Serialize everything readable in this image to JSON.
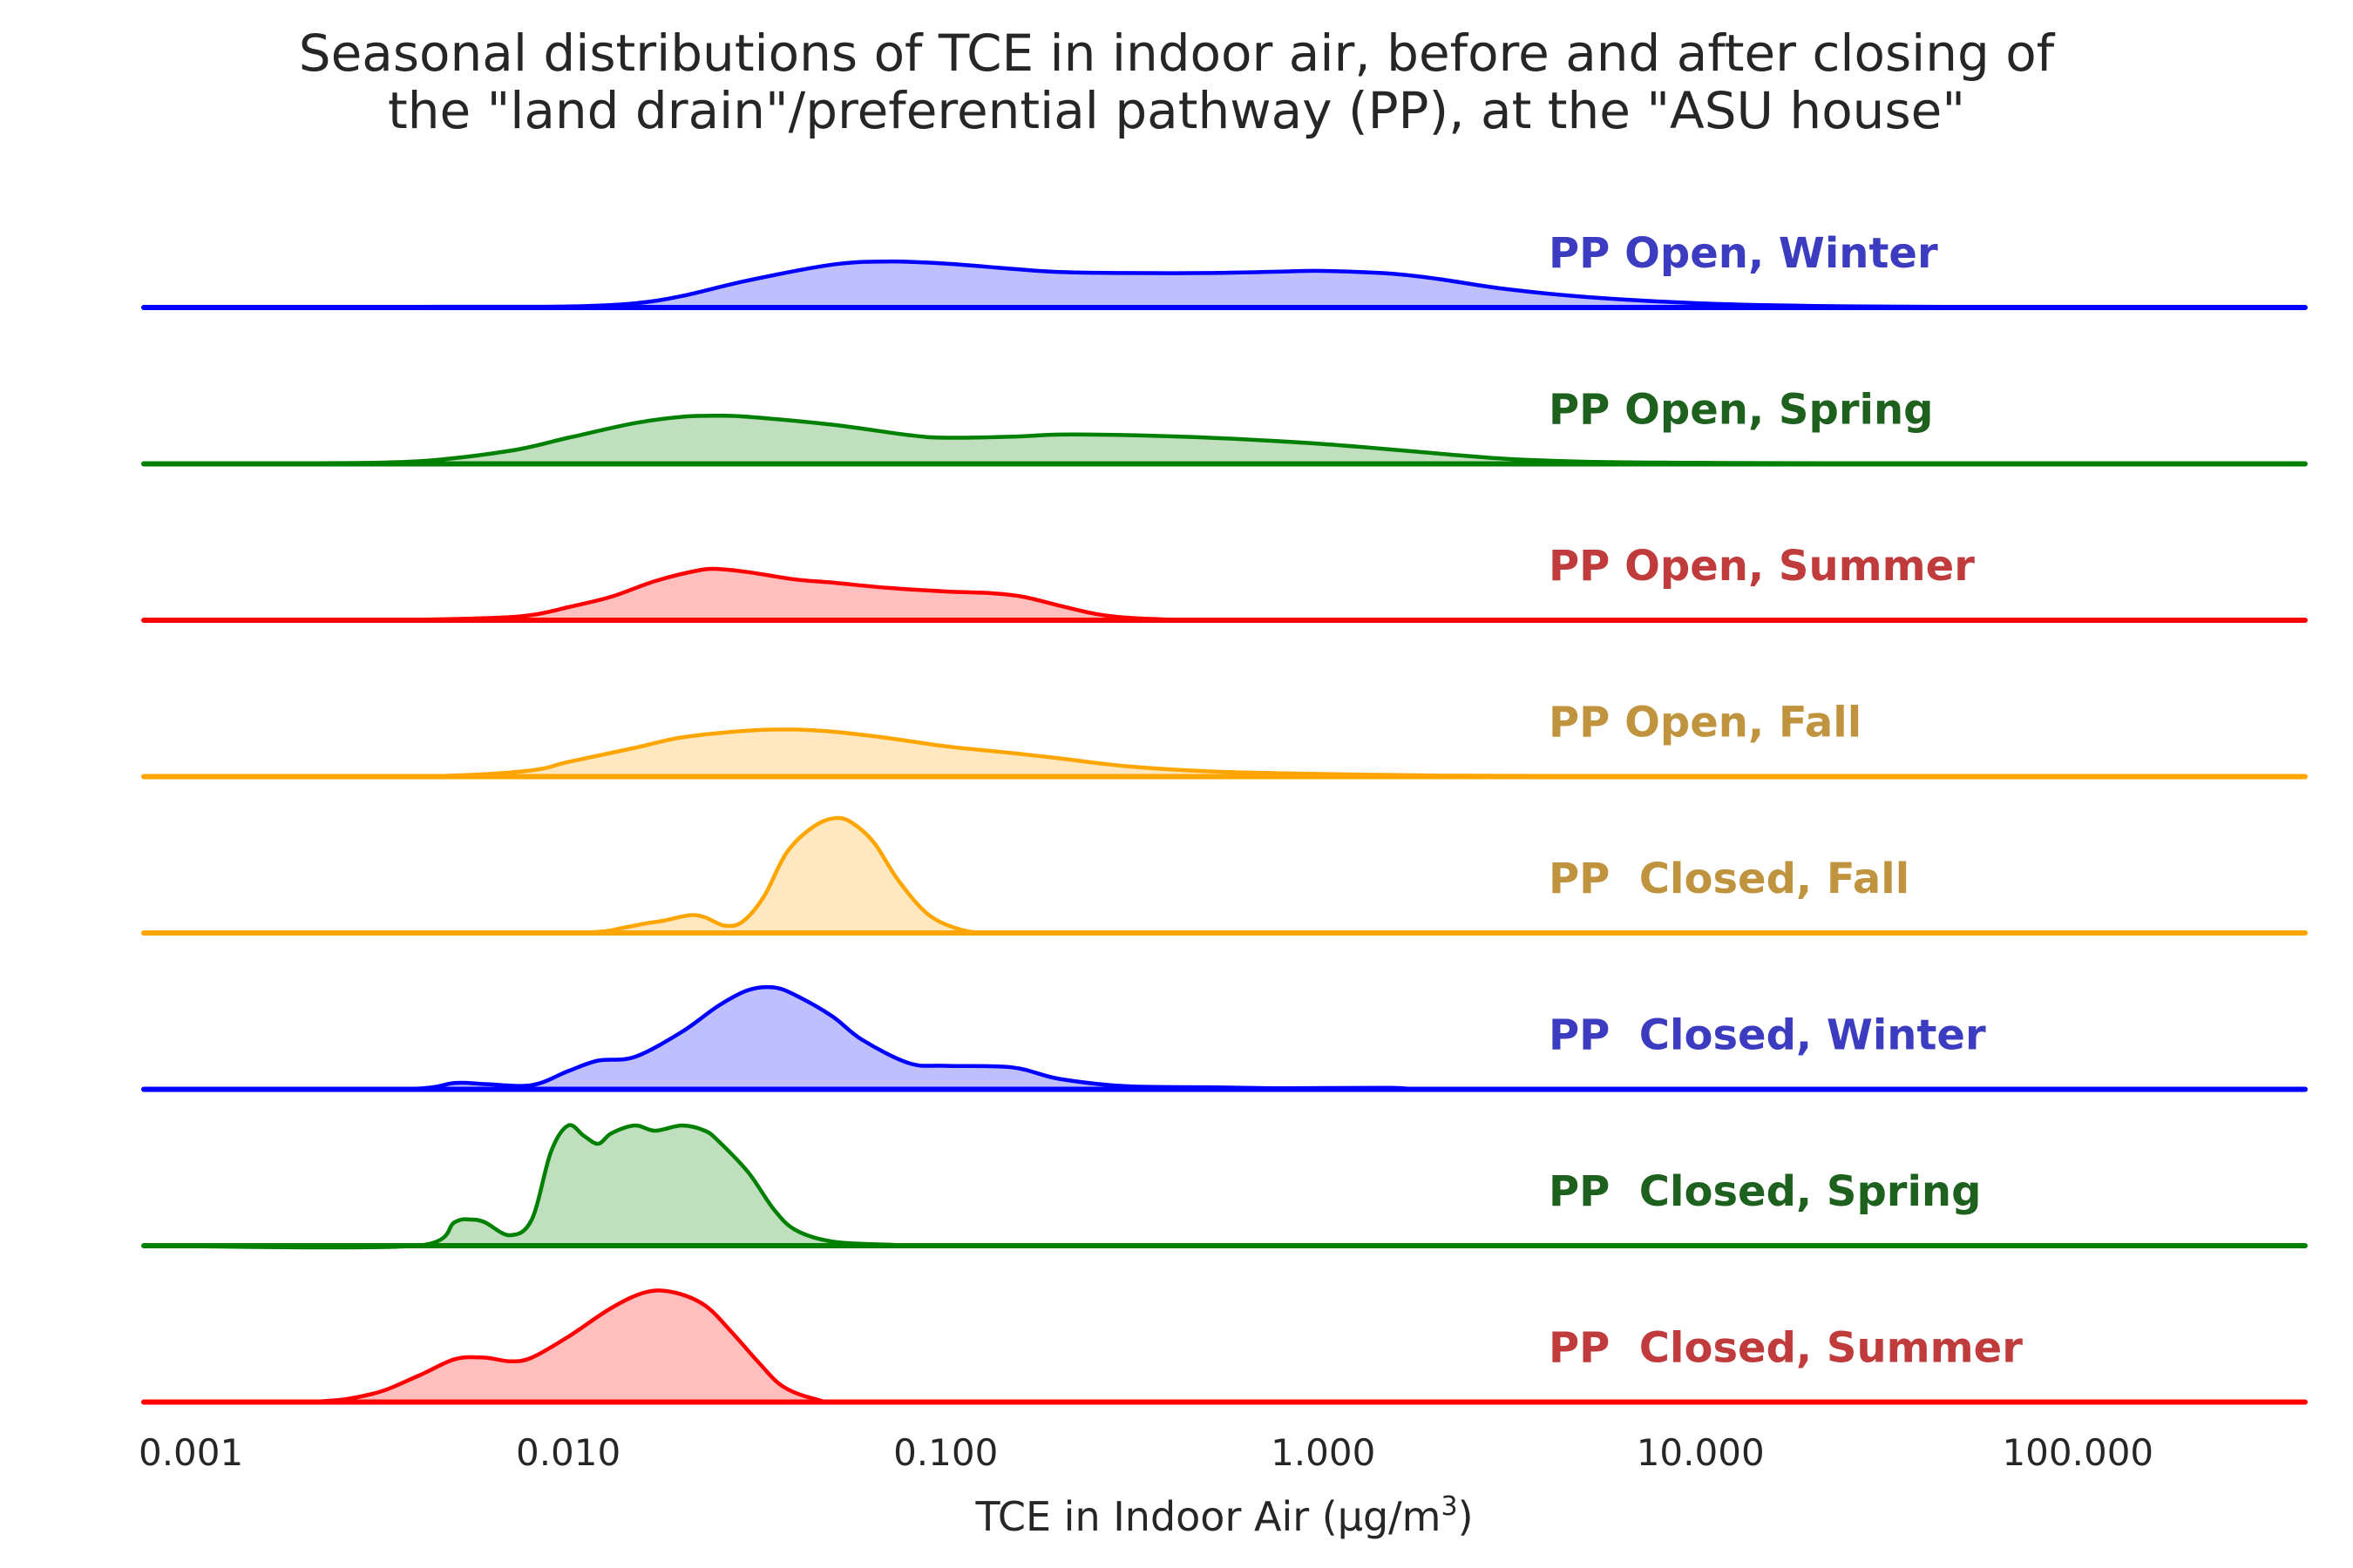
{
  "chart_data": {
    "type": "area",
    "title": [
      "Seasonal distributions of TCE in indoor air, before and after closing of",
      "the \"land drain\"/preferential pathway (PP), at the \"ASU house\""
    ],
    "xlabel": "TCE in Indoor Air (μg/m³)",
    "xlabel_main": "TCE in Indoor Air (μg/m",
    "xlabel_sup": "3",
    "xlabel_end": ")",
    "x_scale": "log",
    "xlim": [
      0.00075,
      400
    ],
    "x_ticks": [
      0.001,
      0.01,
      0.1,
      1,
      10,
      100
    ],
    "x_tick_labels": [
      "0.001",
      "0.010",
      "0.100",
      "1.000",
      "10.000",
      "100.000"
    ],
    "y_max_density": 1.0,
    "grid": false,
    "legend": "none",
    "series": [
      {
        "name": "PP Open, Winter",
        "line_color": "#0000ff",
        "fill_color": "#bfbffd",
        "label_color": "#3c3cc0",
        "x": [
          0.00075,
          0.002,
          0.005,
          0.01,
          0.015,
          0.02,
          0.03,
          0.05,
          0.07,
          0.1,
          0.15,
          0.2,
          0.3,
          0.5,
          0.8,
          1.0,
          1.5,
          2.0,
          3.0,
          5.0,
          10.0,
          20.0,
          50.0,
          400
        ],
        "y": [
          0.0,
          0.005,
          0.015,
          0.02,
          0.08,
          0.22,
          0.52,
          0.82,
          0.88,
          0.84,
          0.74,
          0.68,
          0.66,
          0.66,
          0.69,
          0.7,
          0.65,
          0.55,
          0.36,
          0.2,
          0.08,
          0.03,
          0.01,
          0.0
        ]
      },
      {
        "name": "PP Open, Spring",
        "line_color": "#008000",
        "fill_color": "#bfdfbf",
        "label_color": "#1e601e",
        "x": [
          0.00075,
          0.002,
          0.004,
          0.007,
          0.01,
          0.015,
          0.02,
          0.025,
          0.03,
          0.05,
          0.08,
          0.1,
          0.15,
          0.2,
          0.3,
          0.5,
          1.0,
          2.0,
          3.0,
          5.0,
          10.0,
          30.0,
          400
        ],
        "y": [
          0.0,
          0.01,
          0.05,
          0.25,
          0.5,
          0.78,
          0.9,
          0.92,
          0.9,
          0.75,
          0.55,
          0.5,
          0.52,
          0.56,
          0.55,
          0.5,
          0.38,
          0.2,
          0.1,
          0.04,
          0.02,
          0.01,
          0.0
        ]
      },
      {
        "name": "PP Open, Summer",
        "line_color": "#ff0000",
        "fill_color": "#ffbfbf",
        "label_color": "#c03c3c",
        "x": [
          0.00075,
          0.003,
          0.006,
          0.008,
          0.01,
          0.013,
          0.017,
          0.022,
          0.025,
          0.03,
          0.04,
          0.05,
          0.07,
          0.1,
          0.13,
          0.16,
          0.2,
          0.25,
          0.3,
          0.4,
          0.5,
          400
        ],
        "y": [
          0.0,
          0.0,
          0.04,
          0.1,
          0.25,
          0.45,
          0.75,
          0.95,
          0.98,
          0.92,
          0.78,
          0.72,
          0.62,
          0.55,
          0.52,
          0.45,
          0.28,
          0.12,
          0.05,
          0.01,
          0.0,
          0.0
        ]
      },
      {
        "name": "PP Open, Fall",
        "line_color": "#ffa500",
        "fill_color": "#ffe8bf",
        "label_color": "#c0943e",
        "x": [
          0.00075,
          0.003,
          0.005,
          0.008,
          0.01,
          0.015,
          0.02,
          0.03,
          0.04,
          0.05,
          0.07,
          0.1,
          0.15,
          0.2,
          0.3,
          0.5,
          1.0,
          2.0,
          5.0,
          20.0,
          400
        ],
        "y": [
          0.0,
          0.0,
          0.02,
          0.12,
          0.28,
          0.55,
          0.75,
          0.88,
          0.9,
          0.86,
          0.74,
          0.58,
          0.45,
          0.35,
          0.2,
          0.1,
          0.05,
          0.02,
          0.01,
          0.0,
          0.0
        ]
      },
      {
        "name": "PP  Closed, Fall",
        "line_color": "#ffa500",
        "fill_color": "#ffe8bf",
        "label_color": "#c0943e",
        "x": [
          0.00075,
          0.008,
          0.012,
          0.014,
          0.016,
          0.018,
          0.021,
          0.023,
          0.026,
          0.029,
          0.033,
          0.038,
          0.045,
          0.052,
          0.058,
          0.065,
          0.075,
          0.09,
          0.11,
          0.13,
          0.15,
          400
        ],
        "y": [
          0.0,
          0.0,
          0.02,
          0.1,
          0.18,
          0.24,
          0.34,
          0.3,
          0.14,
          0.22,
          0.7,
          1.55,
          2.05,
          2.2,
          2.05,
          1.7,
          1.0,
          0.35,
          0.06,
          0.0,
          0.0,
          0.0
        ]
      },
      {
        "name": "PP  Closed, Winter",
        "line_color": "#0000ff",
        "fill_color": "#bfbffd",
        "label_color": "#3c3cc0",
        "x": [
          0.00075,
          0.0035,
          0.005,
          0.006,
          0.008,
          0.01,
          0.012,
          0.015,
          0.02,
          0.025,
          0.03,
          0.035,
          0.04,
          0.05,
          0.06,
          0.08,
          0.1,
          0.15,
          0.2,
          0.3,
          0.5,
          0.8,
          1.5,
          2.0,
          400
        ],
        "y": [
          0.0,
          0.0,
          0.12,
          0.1,
          0.08,
          0.35,
          0.55,
          0.62,
          1.1,
          1.6,
          1.9,
          1.95,
          1.8,
          1.4,
          0.95,
          0.5,
          0.45,
          0.42,
          0.2,
          0.06,
          0.04,
          0.02,
          0.03,
          0.0,
          0.0
        ]
      },
      {
        "name": "PP  Closed, Spring",
        "line_color": "#008000",
        "fill_color": "#bfdfbf",
        "label_color": "#1e601e",
        "x": [
          0.00075,
          0.004,
          0.005,
          0.0055,
          0.006,
          0.007,
          0.008,
          0.009,
          0.01,
          0.011,
          0.012,
          0.013,
          0.015,
          0.017,
          0.02,
          0.023,
          0.025,
          0.03,
          0.035,
          0.04,
          0.05,
          0.07,
          0.1,
          400
        ],
        "y": [
          0.0,
          0.0,
          0.45,
          0.5,
          0.45,
          0.2,
          0.5,
          1.8,
          2.3,
          2.1,
          1.95,
          2.15,
          2.3,
          2.2,
          2.3,
          2.2,
          2.0,
          1.4,
          0.7,
          0.3,
          0.08,
          0.02,
          0.0,
          0.0
        ]
      },
      {
        "name": "PP  Closed, Summer",
        "line_color": "#ff0000",
        "fill_color": "#ffbfbf",
        "label_color": "#c03c3c",
        "x": [
          0.00075,
          0.002,
          0.003,
          0.004,
          0.005,
          0.006,
          0.007,
          0.008,
          0.01,
          0.013,
          0.016,
          0.019,
          0.023,
          0.027,
          0.032,
          0.037,
          0.045,
          0.055,
          400
        ],
        "y": [
          0.0,
          0.0,
          0.15,
          0.5,
          0.82,
          0.85,
          0.78,
          0.85,
          1.25,
          1.8,
          2.1,
          2.1,
          1.85,
          1.35,
          0.75,
          0.3,
          0.06,
          0.0,
          0.0
        ]
      }
    ]
  }
}
